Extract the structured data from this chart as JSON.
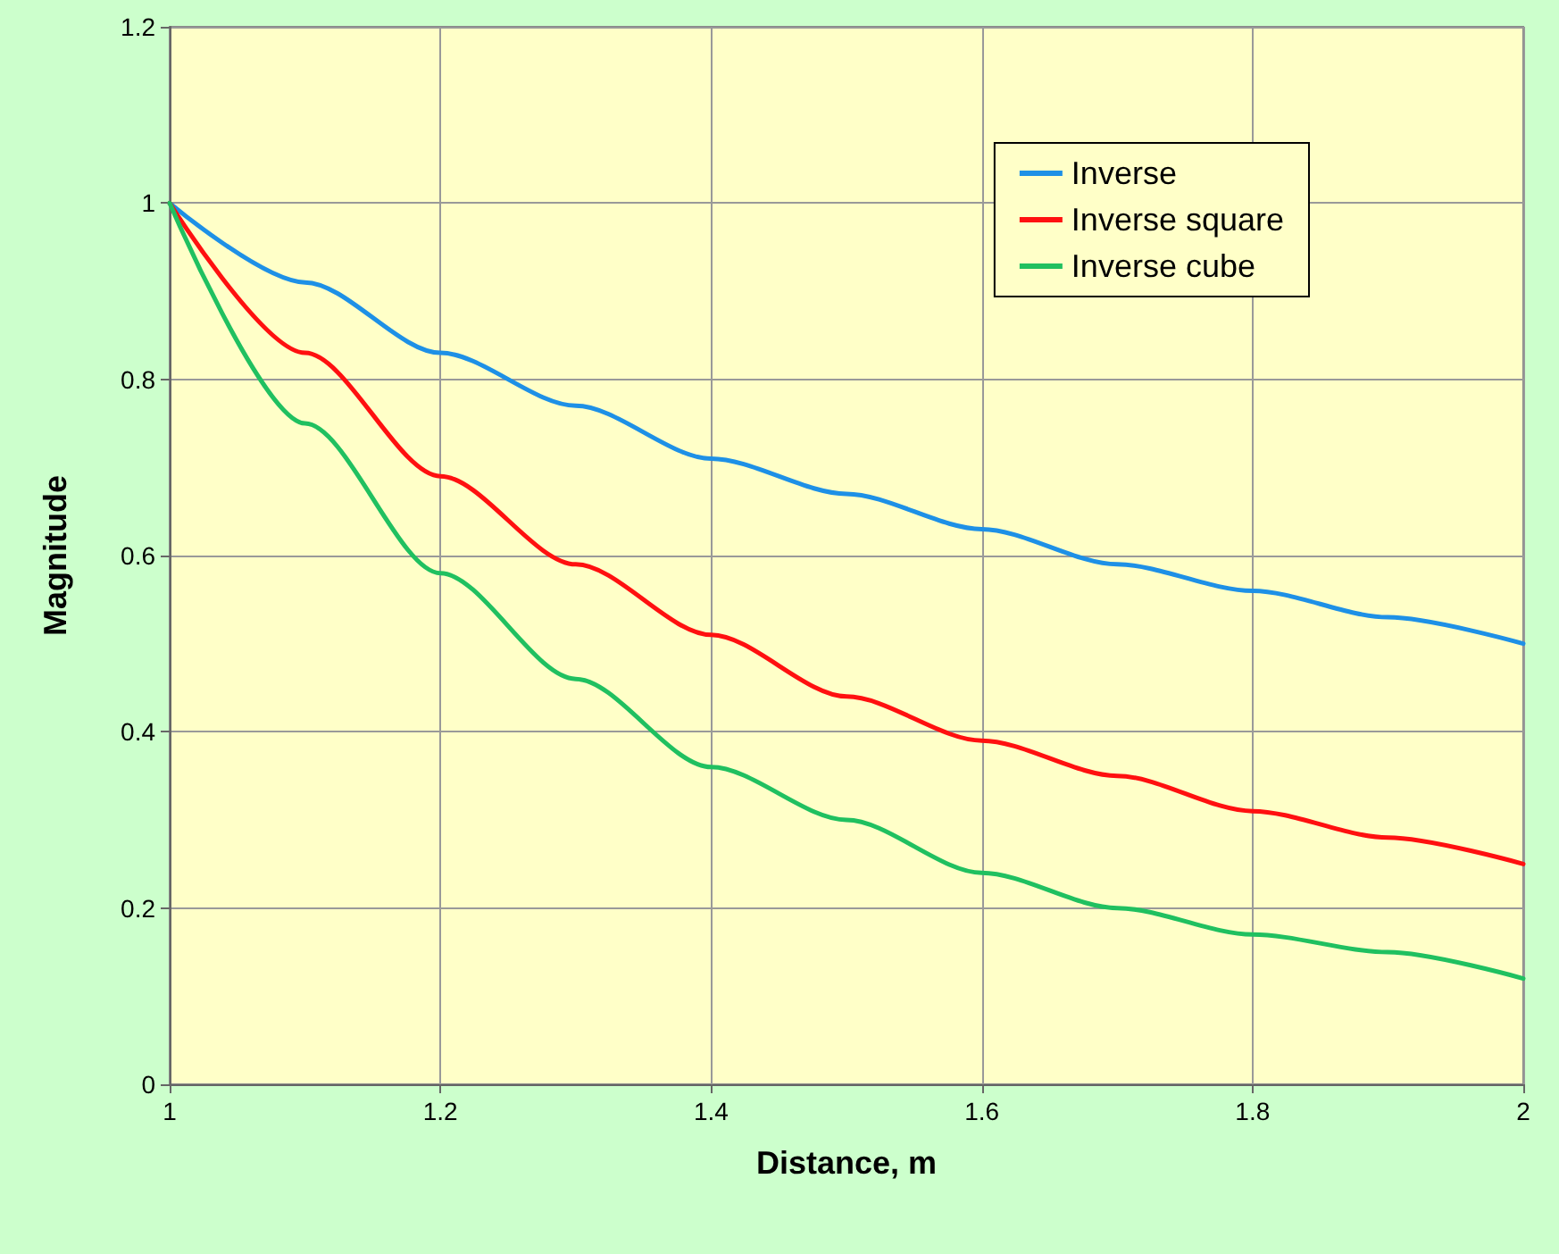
{
  "chart_data": {
    "type": "line",
    "xlabel": "Distance, m",
    "ylabel": "Magnitude",
    "x": [
      1,
      1.1,
      1.2,
      1.3,
      1.4,
      1.5,
      1.6,
      1.7,
      1.8,
      1.9,
      2
    ],
    "series": [
      {
        "name": "Inverse",
        "color": "#1e90e6",
        "values": [
          1,
          0.91,
          0.83,
          0.77,
          0.71,
          0.67,
          0.63,
          0.59,
          0.56,
          0.53,
          0.5
        ]
      },
      {
        "name": "Inverse square",
        "color": "#ff1010",
        "values": [
          1,
          0.83,
          0.69,
          0.59,
          0.51,
          0.44,
          0.39,
          0.35,
          0.31,
          0.28,
          0.25
        ]
      },
      {
        "name": "Inverse cube",
        "color": "#20c060",
        "values": [
          1,
          0.75,
          0.58,
          0.46,
          0.36,
          0.3,
          0.24,
          0.2,
          0.17,
          0.15,
          0.12
        ]
      }
    ],
    "xlim": [
      1,
      2
    ],
    "xticks": [
      1,
      1.2,
      1.4,
      1.6,
      1.8,
      2
    ],
    "ylim": [
      0,
      1.2
    ],
    "yticks": [
      0,
      0.2,
      0.4,
      0.6,
      0.8,
      1,
      1.2
    ],
    "grid": true,
    "legend": "top right",
    "marker": "none",
    "line_style": "solid"
  }
}
